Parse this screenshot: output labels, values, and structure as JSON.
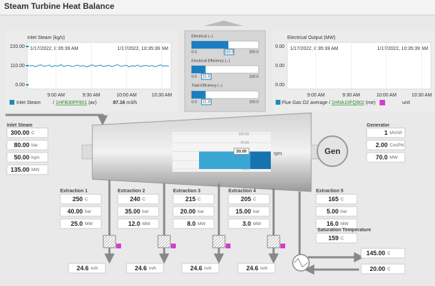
{
  "header": {
    "title": "Steam Turbine Heat Balance"
  },
  "trend_left": {
    "title": "Inlet Steam (kg/s)",
    "start": "1/17/2022, 8:35:39 AM",
    "end": "1/17/2022, 10:35:39 AM",
    "ylim": [
      0,
      220
    ],
    "yticks": [
      {
        "value": 220,
        "label": "220.00"
      },
      {
        "value": 110,
        "label": "110.00"
      },
      {
        "value": 0,
        "label": "0.00"
      }
    ],
    "xticks": [
      "9:00 AM",
      "9:30 AM",
      "10:00 AM",
      "10:30 AM"
    ],
    "color": "#1a8fb5",
    "values": [
      108,
      112,
      104,
      110,
      115,
      106,
      109,
      113,
      103,
      111,
      107,
      116,
      105,
      110,
      112,
      104,
      109,
      114,
      106,
      111,
      103,
      108,
      115,
      107,
      110,
      113,
      105,
      109,
      112,
      104,
      111,
      116,
      106,
      108,
      113,
      103,
      110,
      107,
      114,
      105,
      109,
      112,
      106,
      111,
      104,
      108,
      115,
      107,
      110,
      106
    ],
    "legend": {
      "name": "Inlet Steam",
      "separator": "/",
      "tag": "1HFB30FF901",
      "suffix": "(av)",
      "value": "87.16",
      "unit": "m3/h"
    }
  },
  "trend_right": {
    "title": "Electrical Output (MW)",
    "start": "1/17/2022, 8:35:39 AM",
    "end": "1/17/2022, 10:35:39 AM",
    "yticks": [
      "0.00",
      "0.00",
      "0.00"
    ],
    "xticks": [
      "9:00 AM",
      "9:30 AM",
      "10:00 AM",
      "10:30 AM"
    ],
    "legend": {
      "name": "Flue Gas O2 average",
      "separator": "/",
      "tag": "1HNA10FQ902",
      "suffix": "(me)",
      "unit": "unit"
    }
  },
  "gauges": [
    {
      "label": "Electrical (--)",
      "min": {
        "value": 0,
        "label": "0.0"
      },
      "max": {
        "value": 200,
        "label": "200.0"
      },
      "value": {
        "value": 110,
        "label": "110.0"
      }
    },
    {
      "label": "Electrical Efficiency (--)",
      "min": {
        "value": 0,
        "label": "0.0"
      },
      "max": {
        "value": 100,
        "label": "100.0"
      },
      "value": {
        "value": 21,
        "label": "21.0"
      }
    },
    {
      "label": "Total Efficiency (--)",
      "min": {
        "value": 0,
        "label": "0.0"
      },
      "max": {
        "value": 100,
        "label": "100.0"
      },
      "value": {
        "value": 21,
        "label": "21.0"
      }
    }
  ],
  "inlet_steam": {
    "label": "Inlet Steam",
    "fields": [
      {
        "value": "300.00",
        "unit": "C"
      },
      {
        "value": "80.00",
        "unit": "bar"
      },
      {
        "value": "50.00",
        "unit": "kg/s"
      },
      {
        "value": "135.00",
        "unit": "MW"
      }
    ]
  },
  "turbine": {
    "ylim": [
      0,
      100
    ],
    "yticks": [
      {
        "value": 100,
        "label": "100.00"
      },
      {
        "value": 75,
        "label": "75.00"
      },
      {
        "value": 50,
        "label": "50.00"
      },
      {
        "value": 25,
        "label": "25.00"
      },
      {
        "value": 0,
        "label": "0.00"
      }
    ],
    "value": {
      "value": 50,
      "label": "50.00"
    },
    "unit": "rpm"
  },
  "gen_label": "Gen",
  "generator": {
    "label": "Generator",
    "fields": [
      {
        "value": "1",
        "unit": "MVAR"
      },
      {
        "value": "2.00",
        "unit": "CosPhi"
      },
      {
        "value": "70.0",
        "unit": "MW"
      }
    ]
  },
  "extractions": [
    {
      "label": "Extraction 1",
      "fields": [
        {
          "value": "250",
          "unit": "C"
        },
        {
          "value": "40.00",
          "unit": "bar"
        },
        {
          "value": "25.0",
          "unit": "MW"
        }
      ]
    },
    {
      "label": "Extraction 2",
      "fields": [
        {
          "value": "240",
          "unit": "C"
        },
        {
          "value": "35.00",
          "unit": "bar"
        },
        {
          "value": "12.0",
          "unit": "MW"
        }
      ]
    },
    {
      "label": "Extraction 3",
      "fields": [
        {
          "value": "215",
          "unit": "C"
        },
        {
          "value": "20.00",
          "unit": "bar"
        },
        {
          "value": "8.0",
          "unit": "MW"
        }
      ]
    },
    {
      "label": "Extraction 4",
      "fields": [
        {
          "value": "205",
          "unit": "C"
        },
        {
          "value": "15.00",
          "unit": "bar"
        },
        {
          "value": "3.0",
          "unit": "MW"
        }
      ]
    },
    {
      "label": "Extraction 5",
      "fields": [
        {
          "value": "165",
          "unit": "C"
        },
        {
          "value": "5.00",
          "unit": "bar"
        },
        {
          "value": "16.0",
          "unit": "MW"
        }
      ]
    }
  ],
  "saturation": {
    "label": "Saturation Temperature",
    "field": {
      "value": "159",
      "unit": "C"
    }
  },
  "flows": [
    {
      "value": "24.6",
      "unit": "tn/h"
    },
    {
      "value": "24.6",
      "unit": "tn/h"
    },
    {
      "value": "24.6",
      "unit": "tn/h"
    },
    {
      "value": "24.6",
      "unit": "tn/h"
    }
  ],
  "exchanger": [
    {
      "value": "145.00",
      "unit": "C"
    },
    {
      "value": "20.00",
      "unit": "C"
    }
  ]
}
